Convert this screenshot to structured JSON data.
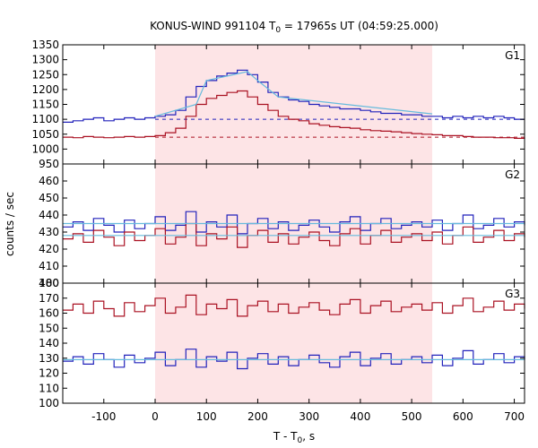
{
  "chart_data": {
    "type": "line",
    "title_prefix": "KONUS-WIND 991104 T",
    "title_sub": "0",
    "title_suffix": " = 17965s UT (04:59:25.000)",
    "ylabel": "counts / sec",
    "xlabel_prefix": "T - T",
    "xlabel_sub": "0",
    "xlabel_suffix": ", s",
    "xlim": [
      -180,
      720
    ],
    "x_ticks": [
      -100,
      0,
      100,
      200,
      300,
      400,
      500,
      600,
      700
    ],
    "highlight_interval": [
      0,
      540
    ],
    "colors": {
      "series_blue": "#2222bb",
      "series_red": "#aa1122",
      "fit_cyan": "#66bbdd",
      "highlight": "#fde4e6"
    },
    "panels": [
      {
        "name": "G1",
        "ylim": [
          950,
          1350
        ],
        "y_ticks": [
          950,
          1000,
          1050,
          1100,
          1150,
          1200,
          1250,
          1300,
          1350
        ],
        "series": [
          {
            "color": "blue",
            "x": [
              -180,
              -160,
              -140,
              -120,
              -100,
              -80,
              -60,
              -40,
              -20,
              0,
              20,
              40,
              60,
              80,
              100,
              120,
              140,
              160,
              180,
              200,
              220,
              240,
              260,
              280,
              300,
              320,
              340,
              360,
              380,
              400,
              420,
              440,
              460,
              480,
              500,
              520,
              540,
              560,
              580,
              600,
              620,
              640,
              660,
              680,
              700,
              720
            ],
            "y": [
              1090,
              1095,
              1100,
              1105,
              1095,
              1100,
              1105,
              1100,
              1105,
              1110,
              1115,
              1130,
              1175,
              1210,
              1230,
              1245,
              1255,
              1265,
              1250,
              1225,
              1190,
              1175,
              1165,
              1160,
              1150,
              1145,
              1140,
              1135,
              1135,
              1130,
              1125,
              1120,
              1120,
              1115,
              1115,
              1110,
              1110,
              1105,
              1110,
              1105,
              1110,
              1105,
              1110,
              1105,
              1100,
              1100
            ],
            "baseline": 1100
          },
          {
            "color": "red",
            "x": [
              -180,
              -160,
              -140,
              -120,
              -100,
              -80,
              -60,
              -40,
              -20,
              0,
              20,
              40,
              60,
              80,
              100,
              120,
              140,
              160,
              180,
              200,
              220,
              240,
              260,
              280,
              300,
              320,
              340,
              360,
              380,
              400,
              420,
              440,
              460,
              480,
              500,
              520,
              540,
              560,
              580,
              600,
              620,
              640,
              660,
              680,
              700,
              720
            ],
            "y": [
              1040,
              1038,
              1042,
              1040,
              1038,
              1040,
              1042,
              1040,
              1042,
              1045,
              1055,
              1070,
              1110,
              1150,
              1170,
              1180,
              1190,
              1195,
              1175,
              1150,
              1130,
              1110,
              1100,
              1095,
              1085,
              1080,
              1075,
              1072,
              1070,
              1065,
              1062,
              1060,
              1058,
              1055,
              1052,
              1050,
              1048,
              1045,
              1045,
              1042,
              1040,
              1040,
              1038,
              1038,
              1036,
              1035
            ],
            "baseline": 1040
          }
        ],
        "fits": [
          {
            "x": [
              0,
              80,
              100,
              180,
              200,
              240,
              540
            ],
            "y": [
              1110,
              1150,
              1230,
              1260,
              1230,
              1175,
              1118
            ]
          }
        ]
      },
      {
        "name": "G2",
        "ylim": [
          400,
          470
        ],
        "y_ticks": [
          400,
          410,
          420,
          430,
          440,
          450,
          460
        ],
        "series": [
          {
            "color": "blue",
            "x": [
              -180,
              -160,
              -140,
              -120,
              -100,
              -80,
              -60,
              -40,
              -20,
              0,
              20,
              40,
              60,
              80,
              100,
              120,
              140,
              160,
              180,
              200,
              220,
              240,
              260,
              280,
              300,
              320,
              340,
              360,
              380,
              400,
              420,
              440,
              460,
              480,
              500,
              520,
              540,
              560,
              580,
              600,
              620,
              640,
              660,
              680,
              700,
              720
            ],
            "y": [
              433,
              436,
              431,
              438,
              434,
              430,
              437,
              432,
              435,
              439,
              431,
              434,
              442,
              430,
              436,
              433,
              440,
              429,
              435,
              438,
              432,
              436,
              431,
              434,
              437,
              433,
              430,
              436,
              439,
              431,
              435,
              438,
              432,
              434,
              436,
              433,
              437,
              431,
              435,
              440,
              432,
              434,
              438,
              433,
              436,
              434
            ]
          },
          {
            "color": "red",
            "x": [
              -180,
              -160,
              -140,
              -120,
              -100,
              -80,
              -60,
              -40,
              -20,
              0,
              20,
              40,
              60,
              80,
              100,
              120,
              140,
              160,
              180,
              200,
              220,
              240,
              260,
              280,
              300,
              320,
              340,
              360,
              380,
              400,
              420,
              440,
              460,
              480,
              500,
              520,
              540,
              560,
              580,
              600,
              620,
              640,
              660,
              680,
              700,
              720
            ],
            "y": [
              426,
              429,
              424,
              431,
              427,
              422,
              430,
              425,
              428,
              432,
              423,
              427,
              435,
              422,
              429,
              426,
              433,
              421,
              428,
              431,
              424,
              429,
              423,
              427,
              430,
              425,
              422,
              429,
              432,
              423,
              428,
              431,
              424,
              427,
              429,
              425,
              430,
              423,
              428,
              433,
              424,
              427,
              431,
              425,
              429,
              427
            ]
          }
        ],
        "fits": [
          {
            "x": [
              -180,
              720
            ],
            "y": [
              435,
              435
            ]
          },
          {
            "x": [
              -180,
              720
            ],
            "y": [
              428,
              428
            ]
          }
        ]
      },
      {
        "name": "G3",
        "ylim": [
          100,
          180
        ],
        "y_ticks": [
          100,
          110,
          120,
          130,
          140,
          150,
          160,
          170,
          180
        ],
        "series": [
          {
            "color": "red",
            "x": [
              -180,
              -160,
              -140,
              -120,
              -100,
              -80,
              -60,
              -40,
              -20,
              0,
              20,
              40,
              60,
              80,
              100,
              120,
              140,
              160,
              180,
              200,
              220,
              240,
              260,
              280,
              300,
              320,
              340,
              360,
              380,
              400,
              420,
              440,
              460,
              480,
              500,
              520,
              540,
              560,
              580,
              600,
              620,
              640,
              660,
              680,
              700,
              720
            ],
            "y": [
              162,
              166,
              160,
              168,
              163,
              158,
              167,
              161,
              165,
              170,
              160,
              164,
              172,
              159,
              166,
              163,
              169,
              158,
              165,
              168,
              161,
              166,
              160,
              164,
              167,
              162,
              159,
              166,
              169,
              160,
              165,
              168,
              161,
              164,
              166,
              162,
              167,
              160,
              165,
              170,
              161,
              164,
              168,
              162,
              166,
              163
            ]
          },
          {
            "color": "blue",
            "x": [
              -180,
              -160,
              -140,
              -120,
              -100,
              -80,
              -60,
              -40,
              -20,
              0,
              20,
              40,
              60,
              80,
              100,
              120,
              140,
              160,
              180,
              200,
              220,
              240,
              260,
              280,
              300,
              320,
              340,
              360,
              380,
              400,
              420,
              440,
              460,
              480,
              500,
              520,
              540,
              560,
              580,
              600,
              620,
              640,
              660,
              680,
              700,
              720
            ],
            "y": [
              128,
              131,
              126,
              133,
              129,
              124,
              132,
              127,
              130,
              134,
              125,
              129,
              136,
              124,
              131,
              128,
              134,
              123,
              130,
              133,
              126,
              131,
              125,
              129,
              132,
              127,
              124,
              131,
              134,
              125,
              130,
              133,
              126,
              129,
              131,
              127,
              132,
              125,
              130,
              135,
              126,
              129,
              133,
              127,
              131,
              129
            ]
          }
        ],
        "fits": [
          {
            "x": [
              -180,
              720
            ],
            "y": [
              129,
              129
            ]
          }
        ]
      }
    ]
  }
}
